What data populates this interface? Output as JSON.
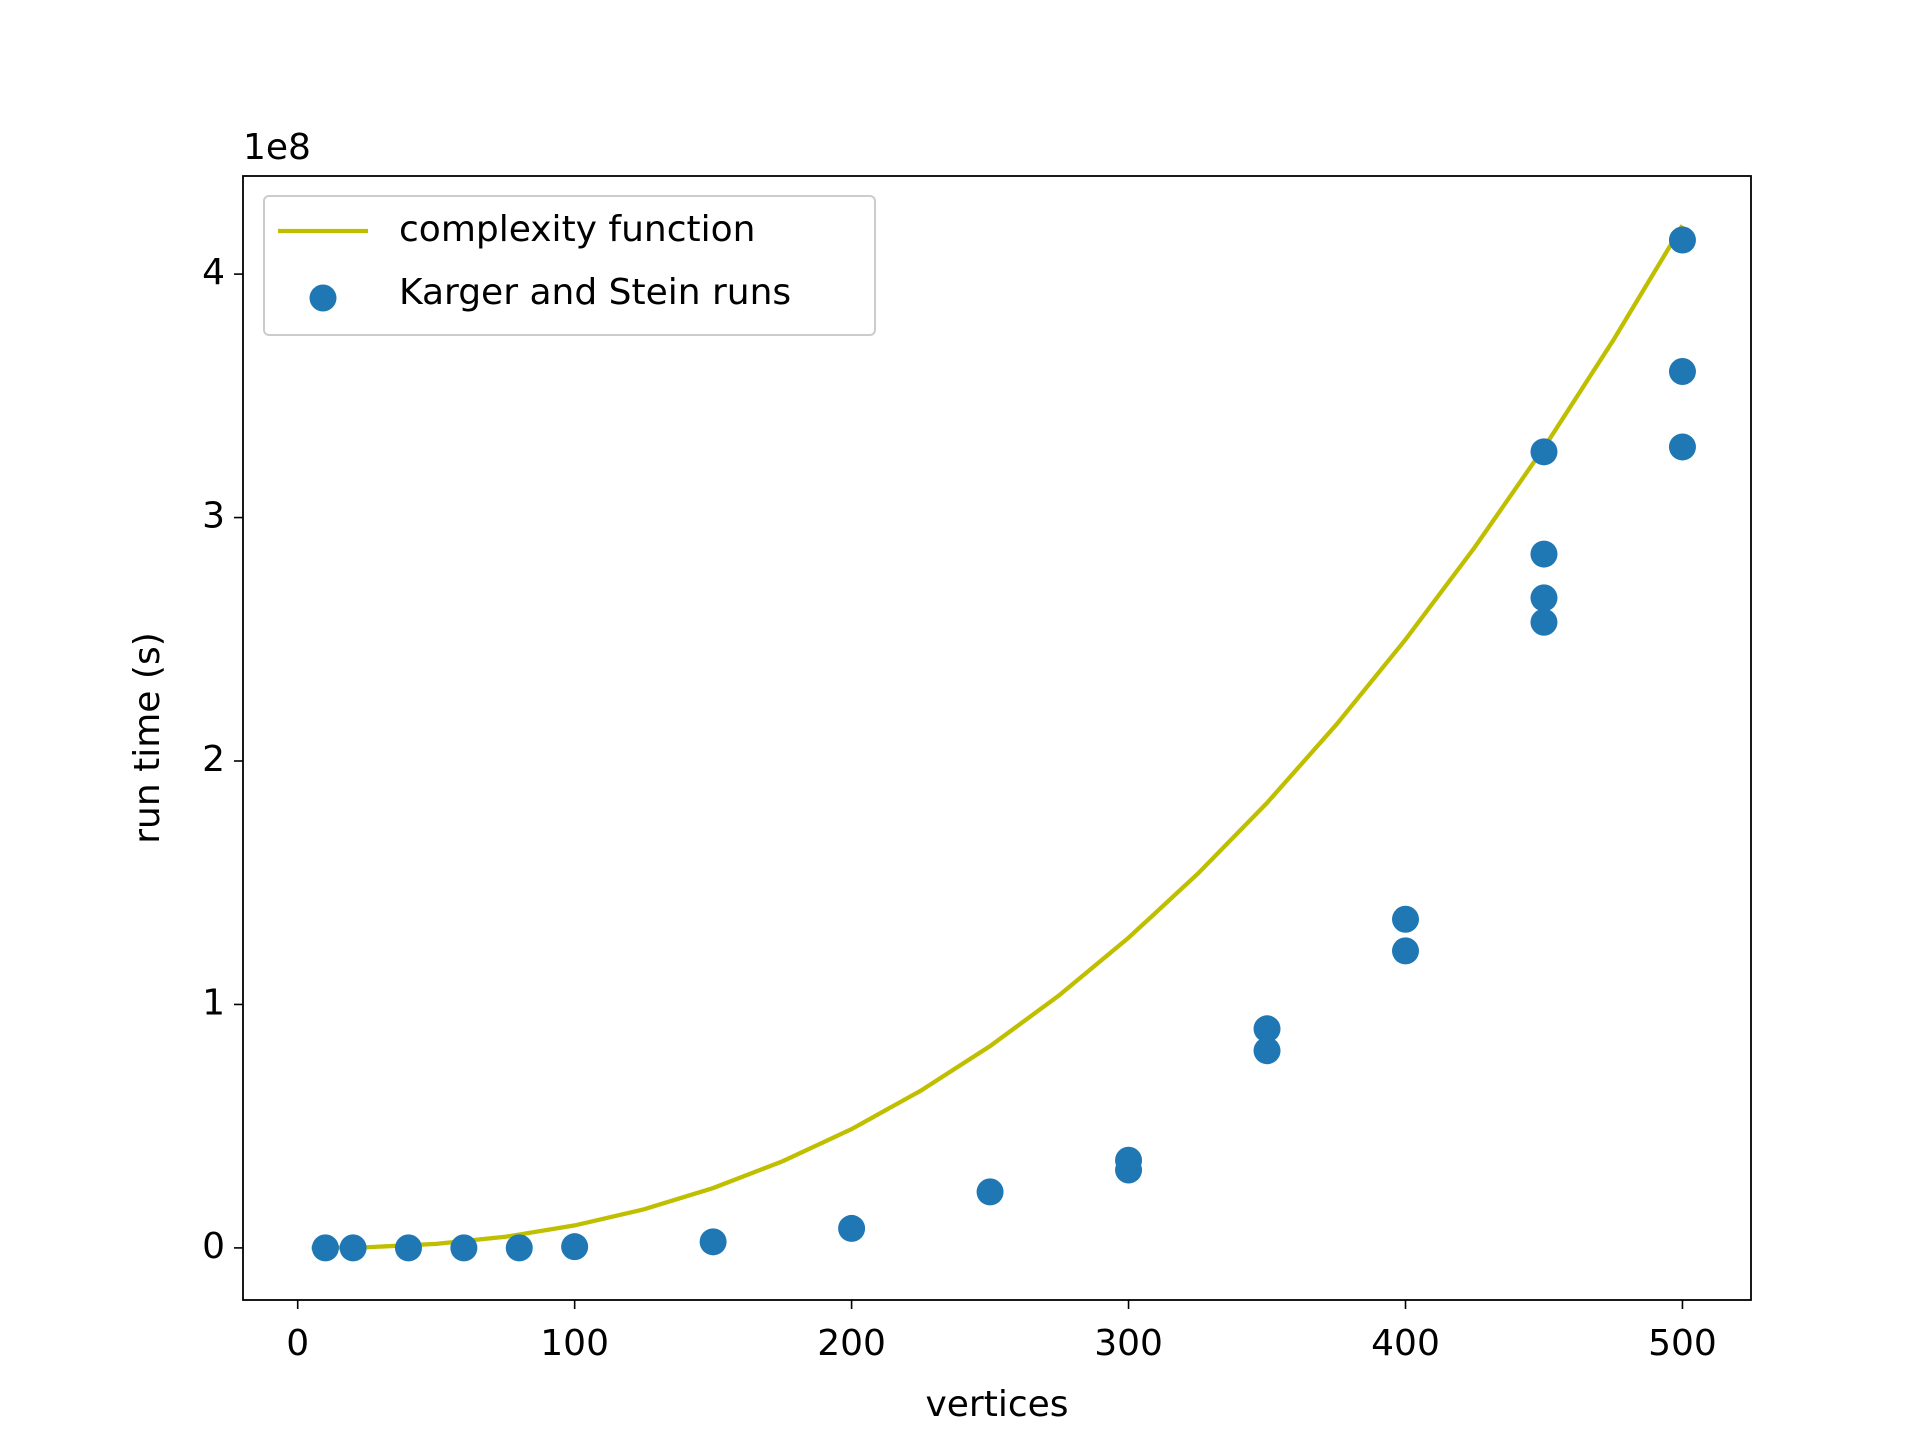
{
  "chart_data": {
    "type": "scatter_line",
    "xlabel": "vertices",
    "ylabel": "run time (s)",
    "y_offset_label": "1e8",
    "xlim": [
      -19.75,
      524.75
    ],
    "ylim": [
      -0.214,
      4.403
    ],
    "xticks": [
      0,
      100,
      200,
      300,
      400,
      500
    ],
    "yticks": [
      0,
      1,
      2,
      3,
      4
    ],
    "legend_loc": "upper left",
    "series": [
      {
        "name": "complexity function",
        "kind": "line",
        "color": "#bfbf00",
        "x": [
          5,
          25,
          50,
          75,
          100,
          125,
          150,
          175,
          200,
          225,
          250,
          275,
          300,
          325,
          350,
          375,
          400,
          425,
          450,
          475,
          500
        ],
        "values": [
          0.0,
          0.0028,
          0.0166,
          0.0456,
          0.0923,
          0.1584,
          0.2458,
          0.3554,
          0.488,
          0.646,
          0.829,
          1.038,
          1.274,
          1.537,
          1.828,
          2.149,
          2.499,
          2.878,
          3.287,
          3.728,
          4.2
        ]
      },
      {
        "name": "Karger and Stein runs",
        "kind": "scatter",
        "color": "#1f77b4",
        "x": [
          10,
          20,
          40,
          60,
          80,
          100,
          150,
          200,
          250,
          300,
          300,
          350,
          350,
          400,
          400,
          450,
          450,
          450,
          450,
          500,
          500,
          500
        ],
        "values": [
          0,
          0,
          0,
          0,
          0,
          0.005,
          0.025,
          0.08,
          0.23,
          0.36,
          0.32,
          0.9,
          0.81,
          1.35,
          1.22,
          3.27,
          2.85,
          2.67,
          2.57,
          4.14,
          3.6,
          3.29
        ]
      }
    ]
  }
}
